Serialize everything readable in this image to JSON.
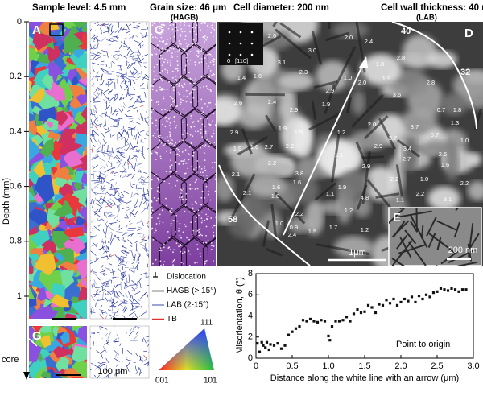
{
  "headers": {
    "sample_level": "Sample level: 4.5 mm",
    "grain_size": "Grain size: 46 μm",
    "grain_size_note": "(HAGB)",
    "cell_diameter": "Cell diameter: 200 nm",
    "cell_wall": "Cell wall thickness: 40 nm",
    "cell_wall_note": "(LAB)"
  },
  "panel_labels": [
    "A",
    "B",
    "C",
    "D",
    "E",
    "G",
    "H"
  ],
  "depth_axis": {
    "label": "Depth (mm)",
    "lim": [
      0,
      1
    ],
    "ticks": [
      0,
      0.2,
      0.4,
      0.6,
      0.8,
      1
    ],
    "core_label": "core"
  },
  "legend": [
    {
      "name": "Dislocation",
      "color": "#000000"
    },
    {
      "name": "HAGB (> 15°)",
      "color": "#000000"
    },
    {
      "name": "LAB (2-15°)",
      "color": "#7b86c9"
    },
    {
      "name": "TB",
      "color": "#e0302b"
    }
  ],
  "scale_bars": {
    "h": "100 μm",
    "d": "1μm",
    "e": "200 nm"
  },
  "saed": {
    "origin": "0",
    "zone": "[110]"
  },
  "ipf_triangle": {
    "top": "111",
    "left": "001",
    "right": "101"
  },
  "d_boundary_labels": [
    "40",
    "32",
    "58"
  ],
  "d_cell_labels": [
    "2.6",
    "2.0",
    "2.4",
    "3.0",
    "3.1",
    "2.8",
    "1.8",
    "1.4",
    "1.6",
    "2.3",
    "1.0",
    "2.0",
    "1.9",
    "2.9",
    "2.8",
    "2.6",
    "2.4",
    "3.6",
    "1.9",
    "0.7",
    "1.8",
    "1.3",
    "2.9",
    "1.5",
    "1.9",
    "1.2",
    "2.0",
    "3.7",
    "2.9",
    "3.7",
    "0.7",
    "1.0",
    "2.7",
    "2.2",
    "1.6",
    "1.9",
    "2.9",
    "3.4",
    "1.1",
    "2.2",
    "1.6",
    "2.6",
    "1.6",
    "2.9",
    "2.7",
    "2.1",
    "3.8",
    "1.6",
    "2.2",
    "1.0",
    "2.2",
    "2.1",
    "1.8",
    "1.9",
    "1.1",
    "4.8",
    "2.2",
    "3.1",
    "1.1",
    "2.2",
    "1.2",
    "1.0",
    "0.9",
    "1.5",
    "1.7",
    "2.4",
    "1.2"
  ],
  "chart_data": {
    "type": "scatter",
    "label": "F",
    "annotation": "Point to origin",
    "xlabel": "Distance along the white line with an arrow (μm)",
    "ylabel": "Misorientation, θ (°)",
    "color": "#111111",
    "x": [
      0.02,
      0.05,
      0.08,
      0.1,
      0.13,
      0.15,
      0.18,
      0.2,
      0.25,
      0.3,
      0.35,
      0.4,
      0.45,
      0.5,
      0.55,
      0.6,
      0.65,
      0.7,
      0.75,
      0.8,
      0.85,
      0.9,
      0.95,
      1.0,
      1.02,
      1.05,
      1.1,
      1.15,
      1.2,
      1.25,
      1.3,
      1.35,
      1.4,
      1.45,
      1.5,
      1.55,
      1.6,
      1.65,
      1.7,
      1.75,
      1.8,
      1.85,
      1.9,
      1.95,
      2.0,
      2.05,
      2.1,
      2.15,
      2.2,
      2.25,
      2.3,
      2.35,
      2.4,
      2.45,
      2.5,
      2.55,
      2.6,
      2.65,
      2.7,
      2.75,
      2.8,
      2.85,
      2.9
    ],
    "values": [
      1.4,
      0.6,
      1.5,
      1.2,
      1.0,
      1.5,
      0.8,
      1.3,
      1.2,
      1.4,
      0.9,
      1.2,
      2.2,
      2.5,
      2.8,
      3.0,
      3.6,
      3.5,
      3.7,
      3.5,
      3.4,
      3.6,
      3.5,
      2.1,
      1.7,
      3.0,
      3.5,
      3.5,
      3.6,
      3.9,
      3.5,
      4.2,
      4.6,
      4.3,
      4.4,
      5.0,
      4.8,
      4.3,
      5.1,
      5.0,
      5.5,
      5.2,
      5.6,
      5.0,
      5.3,
      5.6,
      5.4,
      5.8,
      5.3,
      5.9,
      5.6,
      6.0,
      5.8,
      6.2,
      6.3,
      6.6,
      6.5,
      6.4,
      6.6,
      6.5,
      6.3,
      6.5,
      6.5
    ],
    "xlim": [
      0,
      3
    ],
    "ylim": [
      0,
      8
    ],
    "xticks": [
      0,
      0.5,
      {
        "value": 1,
        "label": "1.0"
      },
      1.5,
      {
        "value": 2,
        "label": "2.0"
      },
      2.5,
      {
        "value": 3,
        "label": "3.0"
      }
    ],
    "yticks": [
      0,
      2,
      4,
      6,
      8
    ]
  }
}
